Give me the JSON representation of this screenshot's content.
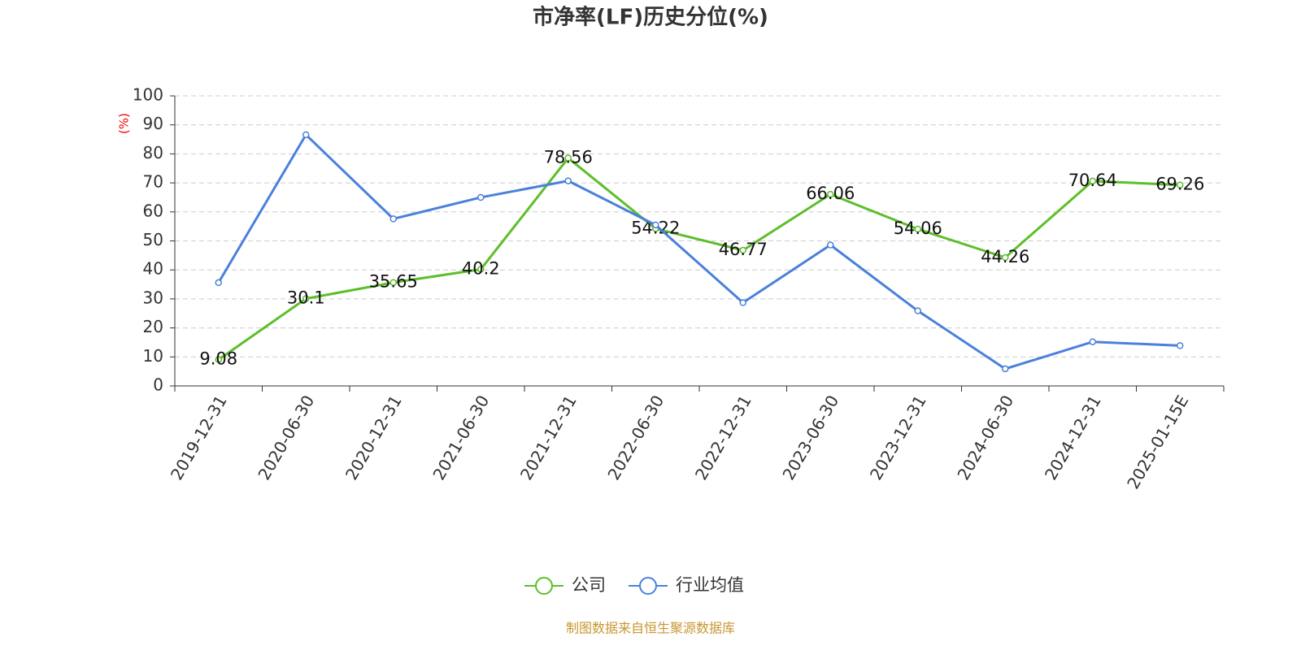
{
  "chart_data": {
    "type": "line",
    "title": "市净率(LF)历史分位(%)",
    "y_label": "(%)",
    "categories": [
      "2019-12-31",
      "2020-06-30",
      "2020-12-31",
      "2021-06-30",
      "2021-12-31",
      "2022-06-30",
      "2022-12-31",
      "2023-06-30",
      "2023-12-31",
      "2024-06-30",
      "2024-12-31",
      "2025-01-15E"
    ],
    "series": [
      {
        "name": "公司",
        "color": "#5cbf2a",
        "values": [
          9.08,
          30.1,
          35.65,
          40.2,
          78.56,
          54.22,
          46.77,
          66.06,
          54.06,
          44.26,
          70.64,
          69.26
        ],
        "data_labels": true
      },
      {
        "name": "行业均值",
        "color": "#4a80dc",
        "values": [
          35.6,
          86.6,
          57.6,
          65,
          70.7,
          55.5,
          28.7,
          48.6,
          25.9,
          5.9,
          15.2,
          13.9
        ],
        "data_labels": false
      }
    ],
    "ylim": [
      0,
      100
    ],
    "yticks": [
      0,
      10,
      20,
      30,
      40,
      50,
      60,
      70,
      80,
      90,
      100
    ],
    "grid": true,
    "legend": "bottom",
    "source": "制图数据来自恒生聚源数据库"
  }
}
